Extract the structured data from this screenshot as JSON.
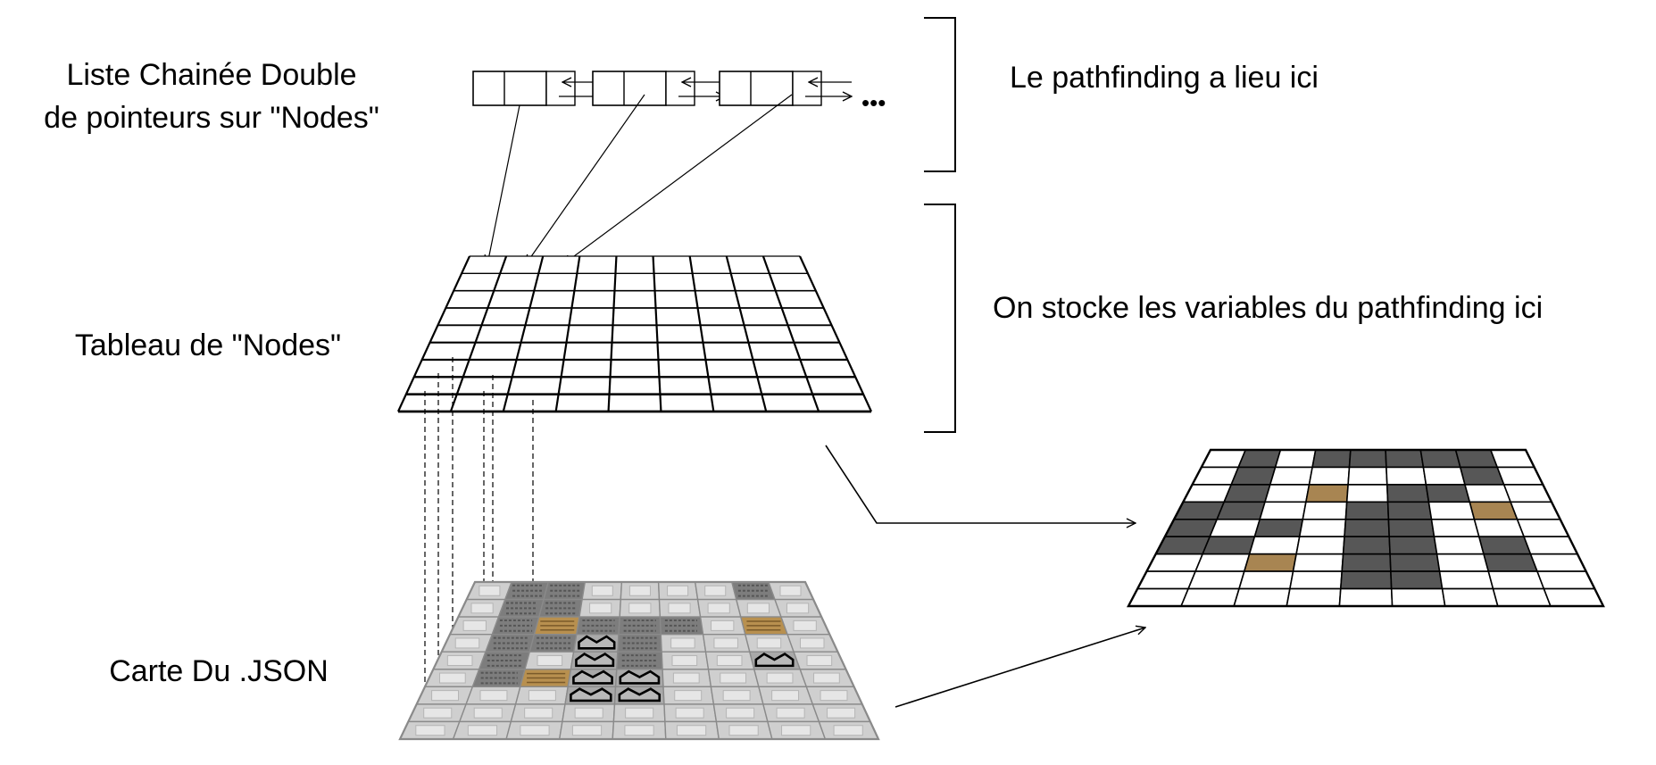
{
  "labels": {
    "linked_list": [
      "Liste Chainée Double",
      "de pointeurs sur \"Nodes\""
    ],
    "nodes_table": "Tableau de \"Nodes\"",
    "json_map": "Carte Du .JSON",
    "pathfinding_here": "Le pathfinding a lieu ici",
    "variables_stored": "On stocke les variables du pathfinding ici",
    "ellipsis": "•••"
  },
  "nodes_grid": {
    "cols": 9,
    "rows": 9
  },
  "result_grid": {
    "cols": 9,
    "rows": 9,
    "cells": [
      "WDWDDDDDW",
      "WDWWWWWDW",
      "WDWOWDDWW",
      "DDWWDDWOW",
      "DWDWDDWWW",
      "DDWWDDWDW",
      "WWOWDDWDW",
      "WWWWDDWWW",
      "WWWWWWWWW"
    ],
    "colors": {
      "W": "#ffffff",
      "D": "#575757",
      "O": "#a88552"
    }
  },
  "json_map_grid": {
    "cols": 9,
    "rows": 9,
    "cells": [
      "FWWFFFFWF",
      "FWWFFFFFF",
      "FWOWWWFOF",
      "FWWMWFFFF",
      "FWFMWFFMF",
      "FWOMMFFFF",
      "FFFMMFFFF",
      "FFFFFFFFF",
      "FFFFFFFFF"
    ],
    "colors": {
      "F": "#cfcfcf",
      "W": "#7d7d7d",
      "O": "#b8904f",
      "M": "#a9a9a9"
    }
  }
}
